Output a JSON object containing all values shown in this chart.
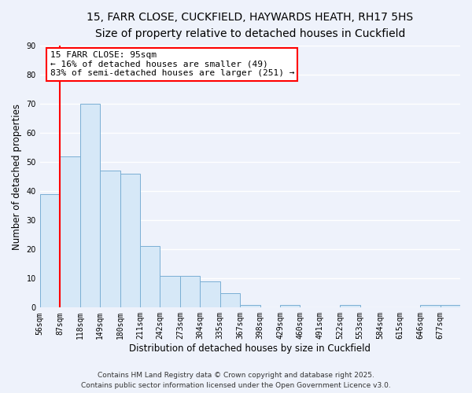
{
  "title": "15, FARR CLOSE, CUCKFIELD, HAYWARDS HEATH, RH17 5HS",
  "subtitle": "Size of property relative to detached houses in Cuckfield",
  "xlabel": "Distribution of detached houses by size in Cuckfield",
  "ylabel": "Number of detached properties",
  "bin_labels": [
    "56sqm",
    "87sqm",
    "118sqm",
    "149sqm",
    "180sqm",
    "211sqm",
    "242sqm",
    "273sqm",
    "304sqm",
    "335sqm",
    "367sqm",
    "398sqm",
    "429sqm",
    "460sqm",
    "491sqm",
    "522sqm",
    "553sqm",
    "584sqm",
    "615sqm",
    "646sqm",
    "677sqm"
  ],
  "bar_values": [
    39,
    52,
    70,
    47,
    46,
    21,
    11,
    11,
    9,
    5,
    1,
    0,
    1,
    0,
    0,
    1,
    0,
    0,
    0,
    1,
    1
  ],
  "bar_color": "#d6e8f7",
  "bar_edge_color": "#7aafd4",
  "ylim": [
    0,
    90
  ],
  "yticks": [
    0,
    10,
    20,
    30,
    40,
    50,
    60,
    70,
    80,
    90
  ],
  "property_line_x": 1,
  "annotation_title": "15 FARR CLOSE: 95sqm",
  "annotation_line1": "← 16% of detached houses are smaller (49)",
  "annotation_line2": "83% of semi-detached houses are larger (251) →",
  "footnote1": "Contains HM Land Registry data © Crown copyright and database right 2025.",
  "footnote2": "Contains public sector information licensed under the Open Government Licence v3.0.",
  "background_color": "#eef2fb",
  "grid_color": "#ffffff",
  "title_fontsize": 10,
  "subtitle_fontsize": 9,
  "axis_label_fontsize": 8.5,
  "tick_fontsize": 7,
  "annotation_fontsize": 8,
  "footnote_fontsize": 6.5
}
